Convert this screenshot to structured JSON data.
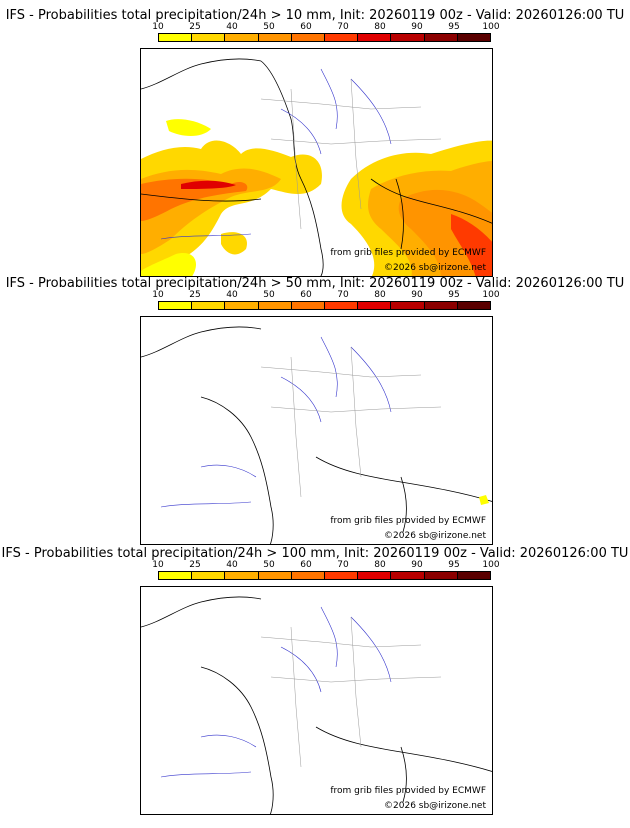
{
  "colors": [
    "#ffff00",
    "#ffd800",
    "#ffae00",
    "#ff9400",
    "#ff7400",
    "#ff3a00",
    "#e00000",
    "#b80000",
    "#8b0000",
    "#5a0000"
  ],
  "ticks": [
    "10",
    "25",
    "40",
    "50",
    "60",
    "70",
    "80",
    "90",
    "95",
    "100"
  ],
  "credit_ecmwf": "from grib files provided by ECMWF",
  "credit_site": "©2026 sb@irizone.net",
  "panels": [
    {
      "title": "IFS - Probabilities total precipitation/24h > 10 mm, Init: 20260119 00z - Valid: 20260126:00 TU"
    },
    {
      "title": "IFS - Probabilities total precipitation/24h > 50 mm, Init: 20260119 00z - Valid: 20260126:00 TU"
    },
    {
      "title": "IFS - Probabilities total precipitation/24h > 100 mm, Init: 20260119 00z - Valid: 20260126:00 TU"
    }
  ]
}
